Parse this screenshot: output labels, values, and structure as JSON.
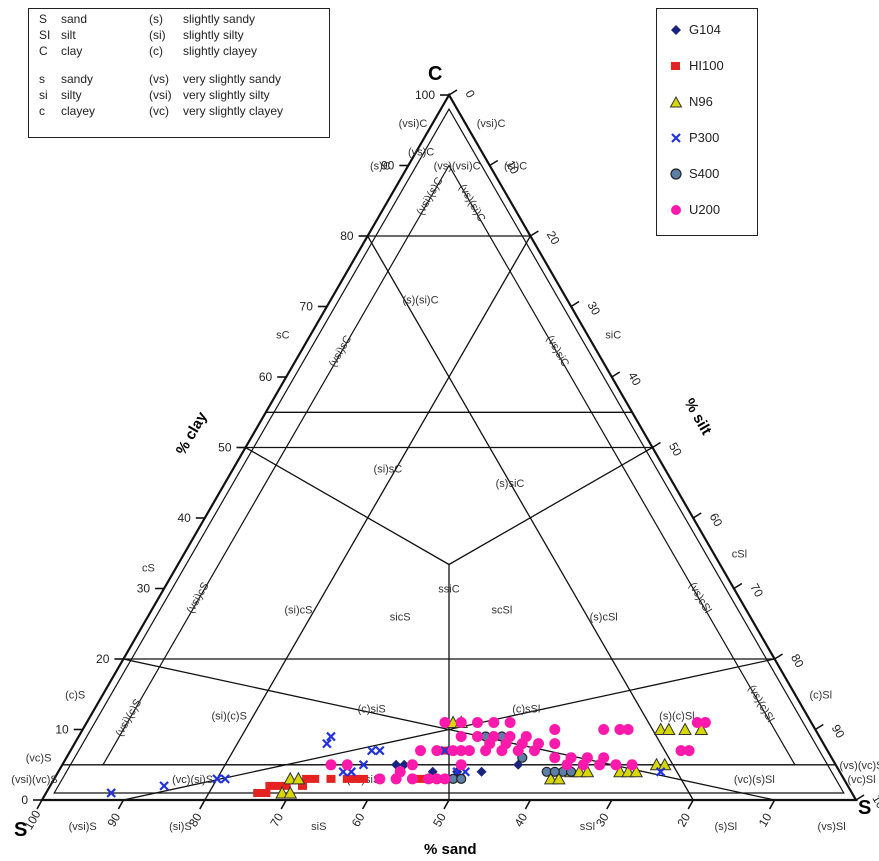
{
  "chart_data": {
    "type": "scatter",
    "subtype": "ternary",
    "corner_labels": {
      "top": "C",
      "left": "S",
      "right": "S"
    },
    "axis_labels": {
      "clay": "% clay",
      "silt": "% silt",
      "sand": "% sand"
    },
    "clay_ticks": [
      0,
      10,
      20,
      30,
      40,
      50,
      60,
      70,
      80,
      90,
      100
    ],
    "silt_ticks": [
      0,
      10,
      20,
      30,
      40,
      50,
      60,
      70,
      80,
      90,
      100
    ],
    "sand_ticks": [
      100,
      90,
      80,
      70,
      60,
      50,
      40,
      30,
      20,
      10
    ],
    "legend_placement": "top-right",
    "abbreviation_legend": [
      [
        "S",
        "sand",
        "(s)",
        "slightly sandy"
      ],
      [
        "SI",
        "silt",
        "(si)",
        "slightly silty"
      ],
      [
        "C",
        "clay",
        "(c)",
        "slightly clayey"
      ],
      [
        "s",
        "sandy",
        "(vs)",
        "very slightly sandy"
      ],
      [
        "si",
        "silty",
        "(vsi)",
        "very slightly silty"
      ],
      [
        "c",
        "clayey",
        "(vc)",
        "very slightly clayey"
      ]
    ],
    "edge_labels": {
      "left": [
        "(vsi)C",
        "(vs)C",
        "(s)C",
        "sC",
        "cS",
        "(c)S",
        "(vc)S",
        "(vsi)(vc)S"
      ],
      "right": [
        "(vsi)C",
        "(si)C",
        "siC",
        "cSl",
        "(c)Sl",
        "(vs)(vc)S",
        "(vc)Sl"
      ],
      "bottom": [
        "(vsi)S",
        "(si)S",
        "siS",
        "sSl",
        "(s)Sl",
        "(vs)Sl"
      ]
    },
    "region_labels": [
      {
        "text": "(vs)(vsi)C",
        "sand": 4,
        "silt": 6
      },
      {
        "text": "(vsi)(s)C",
        "sand": 9,
        "silt": 5
      },
      {
        "text": "(vs)(si)C",
        "sand": 5,
        "silt": 10
      },
      {
        "text": "(s)(si)C",
        "sand": 18,
        "silt": 11
      },
      {
        "text": "(vsi)sC",
        "sand": 31,
        "silt": 5
      },
      {
        "text": "(vs)siC",
        "sand": 5,
        "silt": 31
      },
      {
        "text": "(si)sC",
        "sand": 34,
        "silt": 19
      },
      {
        "text": "(s)siC",
        "sand": 20,
        "silt": 35
      },
      {
        "text": "ssiC",
        "sand": 35,
        "silt": 35
      },
      {
        "text": "(vsi)cS",
        "sand": 66,
        "silt": 5
      },
      {
        "text": "(vs)cSl",
        "sand": 5,
        "silt": 66
      },
      {
        "text": "(si)cS",
        "sand": 55,
        "silt": 18
      },
      {
        "text": "sicS",
        "sand": 43,
        "silt": 31
      },
      {
        "text": "scSl",
        "sand": 30,
        "silt": 43
      },
      {
        "text": "(s)cSl",
        "sand": 18,
        "silt": 56
      },
      {
        "text": "(vsi)(c)S",
        "sand": 83,
        "silt": 5
      },
      {
        "text": "(si)(c)S",
        "sand": 71,
        "silt": 17
      },
      {
        "text": "(c)siS",
        "sand": 53,
        "silt": 34
      },
      {
        "text": "(c)sSl",
        "sand": 34,
        "silt": 53
      },
      {
        "text": "(s)(c)Sl",
        "sand": 16,
        "silt": 72
      },
      {
        "text": "(vs)(c)Sl",
        "sand": 5,
        "silt": 81
      },
      {
        "text": "(vc)(si)S",
        "sand": 80,
        "silt": 17
      },
      {
        "text": "(vc)siS",
        "sand": 59,
        "silt": 38
      },
      {
        "text": "(vc)(s)Sl",
        "sand": 11,
        "silt": 86
      }
    ],
    "series": [
      {
        "name": "G104",
        "color": "#1a237e",
        "marker": "diamond",
        "points": [
          [
            54,
            41
          ],
          [
            53,
            42
          ],
          [
            50,
            46
          ],
          [
            47,
            49
          ],
          [
            44,
            52
          ],
          [
            46,
            47
          ],
          [
            40,
            53
          ],
          [
            39,
            56
          ]
        ]
      },
      {
        "name": "HI100",
        "color": "#e52222",
        "marker": "square",
        "points": [
          [
            73,
            26
          ],
          [
            72,
            27
          ],
          [
            71,
            27
          ],
          [
            70,
            28
          ],
          [
            69,
            29
          ],
          [
            67,
            31
          ],
          [
            66,
            31
          ],
          [
            65,
            32
          ],
          [
            63,
            34
          ],
          [
            61,
            36
          ],
          [
            60,
            37
          ],
          [
            59,
            38
          ],
          [
            57,
            40
          ],
          [
            52,
            45
          ],
          [
            50,
            47
          ],
          [
            47,
            46
          ]
        ]
      },
      {
        "name": "N96",
        "color": "#d8d800",
        "marker": "triangle",
        "points": [
          [
            70,
            29
          ],
          [
            69,
            30
          ],
          [
            68,
            29
          ],
          [
            67,
            30
          ],
          [
            44,
            45
          ],
          [
            43,
            46
          ],
          [
            36,
            61
          ],
          [
            35,
            62
          ],
          [
            33,
            63
          ],
          [
            32,
            64
          ],
          [
            31,
            65
          ],
          [
            27,
            69
          ],
          [
            26,
            70
          ],
          [
            25,
            71
          ],
          [
            22,
            73
          ],
          [
            21,
            74
          ],
          [
            19,
            71
          ],
          [
            18,
            72
          ],
          [
            16,
            74
          ],
          [
            14,
            76
          ]
        ]
      },
      {
        "name": "P300",
        "color": "#2233dd",
        "marker": "x",
        "points": [
          [
            91,
            8
          ],
          [
            84,
            14
          ],
          [
            77,
            20
          ],
          [
            76,
            21
          ],
          [
            61,
            31
          ],
          [
            60,
            31
          ],
          [
            56,
            37
          ],
          [
            55,
            38
          ],
          [
            61,
            35
          ],
          [
            60,
            36
          ],
          [
            58,
            37
          ],
          [
            47,
            49
          ],
          [
            46,
            50
          ],
          [
            22,
            74
          ],
          [
            47,
            46
          ]
        ]
      },
      {
        "name": "S400",
        "color": "#5b7fa6",
        "marker": "circle",
        "points": [
          [
            50,
            47
          ],
          [
            49,
            48
          ],
          [
            48,
            49
          ],
          [
            47,
            50
          ],
          [
            42,
            49
          ],
          [
            41,
            50
          ],
          [
            40,
            51
          ],
          [
            39,
            52
          ],
          [
            38,
            56
          ],
          [
            34,
            62
          ],
          [
            33,
            63
          ],
          [
            36,
            60
          ],
          [
            35,
            61
          ]
        ]
      },
      {
        "name": "U200",
        "color": "#ff1aac",
        "marker": "circle",
        "points": [
          [
            62,
            33
          ],
          [
            60,
            35
          ],
          [
            57,
            40
          ],
          [
            55,
            42
          ],
          [
            53,
            44
          ],
          [
            51,
            46
          ],
          [
            50,
            47
          ],
          [
            49,
            48
          ],
          [
            50,
            43
          ],
          [
            48,
            45
          ],
          [
            46,
            47
          ],
          [
            44,
            49
          ],
          [
            42,
            51
          ],
          [
            40,
            53
          ],
          [
            38,
            55
          ],
          [
            36,
            57
          ],
          [
            44,
            47
          ],
          [
            42,
            49
          ],
          [
            40,
            51
          ],
          [
            38,
            53
          ],
          [
            36,
            55
          ],
          [
            45,
            44
          ],
          [
            43,
            46
          ],
          [
            41,
            48
          ],
          [
            39,
            50
          ],
          [
            37,
            52
          ],
          [
            41,
            51
          ],
          [
            39,
            53
          ],
          [
            37,
            55
          ],
          [
            35,
            57
          ],
          [
            33,
            59
          ],
          [
            34,
            60
          ],
          [
            32,
            62
          ],
          [
            30,
            64
          ],
          [
            28,
            66
          ],
          [
            33,
            62
          ],
          [
            31,
            64
          ],
          [
            29,
            66
          ],
          [
            27,
            68
          ],
          [
            25,
            70
          ],
          [
            26,
            64
          ],
          [
            24,
            66
          ],
          [
            23,
            67
          ],
          [
            18,
            75
          ],
          [
            17,
            76
          ],
          [
            14,
            75
          ],
          [
            13,
            76
          ],
          [
            32,
            58
          ],
          [
            45,
            48
          ],
          [
            46,
            49
          ],
          [
            52,
            43
          ],
          [
            54,
            42
          ]
        ]
      }
    ]
  }
}
